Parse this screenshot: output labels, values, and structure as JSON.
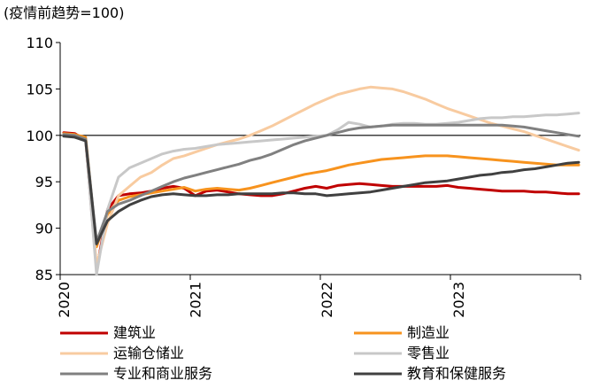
{
  "chart_data": {
    "type": "line",
    "unit_label": "(疫情前趋势=100)",
    "ylim": [
      85,
      110
    ],
    "yticks": [
      85,
      90,
      95,
      100,
      105,
      110
    ],
    "xlim": [
      "2020-01",
      "2023-12"
    ],
    "xtick_labels": [
      "2020",
      "2021",
      "2022",
      "2023"
    ],
    "reference_line": 100,
    "grid": false,
    "legend_position": "bottom",
    "x": [
      "2020-01",
      "2020-02",
      "2020-03",
      "2020-04",
      "2020-05",
      "2020-06",
      "2020-07",
      "2020-08",
      "2020-09",
      "2020-10",
      "2020-11",
      "2020-12",
      "2021-01",
      "2021-02",
      "2021-03",
      "2021-04",
      "2021-05",
      "2021-06",
      "2021-07",
      "2021-08",
      "2021-09",
      "2021-10",
      "2021-11",
      "2021-12",
      "2022-01",
      "2022-02",
      "2022-03",
      "2022-04",
      "2022-05",
      "2022-06",
      "2022-07",
      "2022-08",
      "2022-09",
      "2022-10",
      "2022-11",
      "2022-12",
      "2023-01",
      "2023-02",
      "2023-03",
      "2023-04",
      "2023-05",
      "2023-06",
      "2023-07",
      "2023-08",
      "2023-09",
      "2023-10",
      "2023-11",
      "2023-12"
    ],
    "series": [
      {
        "name": "建筑业",
        "color": "#c00000",
        "values": [
          100.3,
          100.2,
          99.5,
          85.5,
          92.0,
          93.5,
          93.7,
          93.8,
          94.0,
          94.3,
          94.5,
          94.3,
          93.5,
          94.0,
          94.1,
          93.9,
          93.7,
          93.6,
          93.5,
          93.5,
          93.7,
          94.0,
          94.3,
          94.5,
          94.3,
          94.6,
          94.7,
          94.8,
          94.7,
          94.6,
          94.5,
          94.5,
          94.5,
          94.5,
          94.5,
          94.6,
          94.4,
          94.3,
          94.2,
          94.1,
          94.0,
          94.0,
          94.0,
          93.9,
          93.9,
          93.8,
          93.7,
          93.7
        ]
      },
      {
        "name": "制造业",
        "color": "#f7931e",
        "values": [
          100.2,
          100.1,
          99.8,
          88.0,
          91.5,
          93.0,
          93.4,
          93.6,
          93.8,
          94.0,
          94.2,
          94.4,
          94.0,
          94.2,
          94.3,
          94.2,
          94.1,
          94.3,
          94.6,
          94.9,
          95.2,
          95.5,
          95.8,
          96.0,
          96.2,
          96.5,
          96.8,
          97.0,
          97.2,
          97.4,
          97.5,
          97.6,
          97.7,
          97.8,
          97.8,
          97.8,
          97.7,
          97.6,
          97.5,
          97.4,
          97.3,
          97.2,
          97.1,
          97.0,
          96.9,
          96.8,
          96.8,
          96.8
        ]
      },
      {
        "name": "运输仓储业",
        "color": "#f8cba0",
        "values": [
          100.1,
          100.0,
          99.5,
          86.0,
          90.5,
          93.5,
          94.5,
          95.5,
          96.0,
          96.8,
          97.5,
          97.8,
          98.2,
          98.6,
          99.0,
          99.3,
          99.6,
          100.0,
          100.5,
          101.0,
          101.6,
          102.2,
          102.8,
          103.4,
          103.9,
          104.4,
          104.7,
          105.0,
          105.2,
          105.1,
          105.0,
          104.7,
          104.3,
          103.9,
          103.4,
          102.9,
          102.5,
          102.1,
          101.7,
          101.3,
          101.0,
          100.7,
          100.4,
          100.0,
          99.6,
          99.2,
          98.8,
          98.4
        ]
      },
      {
        "name": "零售业",
        "color": "#c8c8c8",
        "values": [
          100.0,
          99.9,
          99.5,
          85.0,
          92.0,
          95.5,
          96.5,
          97.0,
          97.5,
          98.0,
          98.3,
          98.5,
          98.6,
          98.8,
          99.0,
          99.1,
          99.2,
          99.3,
          99.4,
          99.5,
          99.6,
          99.7,
          99.8,
          99.9,
          100.0,
          100.6,
          101.4,
          101.2,
          100.9,
          101.0,
          101.2,
          101.3,
          101.3,
          101.2,
          101.2,
          101.3,
          101.4,
          101.6,
          101.8,
          101.9,
          101.9,
          102.0,
          102.0,
          102.1,
          102.2,
          102.2,
          102.3,
          102.4
        ]
      },
      {
        "name": "专业和商业服务",
        "color": "#808080",
        "values": [
          100.1,
          100.0,
          99.6,
          88.5,
          91.8,
          92.6,
          93.0,
          93.5,
          94.0,
          94.5,
          95.0,
          95.4,
          95.7,
          96.0,
          96.3,
          96.6,
          96.9,
          97.3,
          97.6,
          98.0,
          98.5,
          99.0,
          99.4,
          99.7,
          100.0,
          100.3,
          100.6,
          100.8,
          100.9,
          101.0,
          101.1,
          101.1,
          101.1,
          101.1,
          101.1,
          101.1,
          101.1,
          101.1,
          101.1,
          101.1,
          101.1,
          101.0,
          100.9,
          100.7,
          100.5,
          100.3,
          100.1,
          99.9
        ]
      },
      {
        "name": "教育和保健服务",
        "color": "#404040",
        "values": [
          99.9,
          99.8,
          99.4,
          88.3,
          90.8,
          91.8,
          92.5,
          93.0,
          93.4,
          93.6,
          93.7,
          93.6,
          93.5,
          93.5,
          93.6,
          93.6,
          93.7,
          93.7,
          93.7,
          93.7,
          93.8,
          93.8,
          93.7,
          93.7,
          93.5,
          93.6,
          93.7,
          93.8,
          93.9,
          94.1,
          94.3,
          94.5,
          94.7,
          94.9,
          95.0,
          95.1,
          95.3,
          95.5,
          95.7,
          95.8,
          96.0,
          96.1,
          96.3,
          96.4,
          96.6,
          96.8,
          97.0,
          97.1
        ]
      }
    ]
  }
}
